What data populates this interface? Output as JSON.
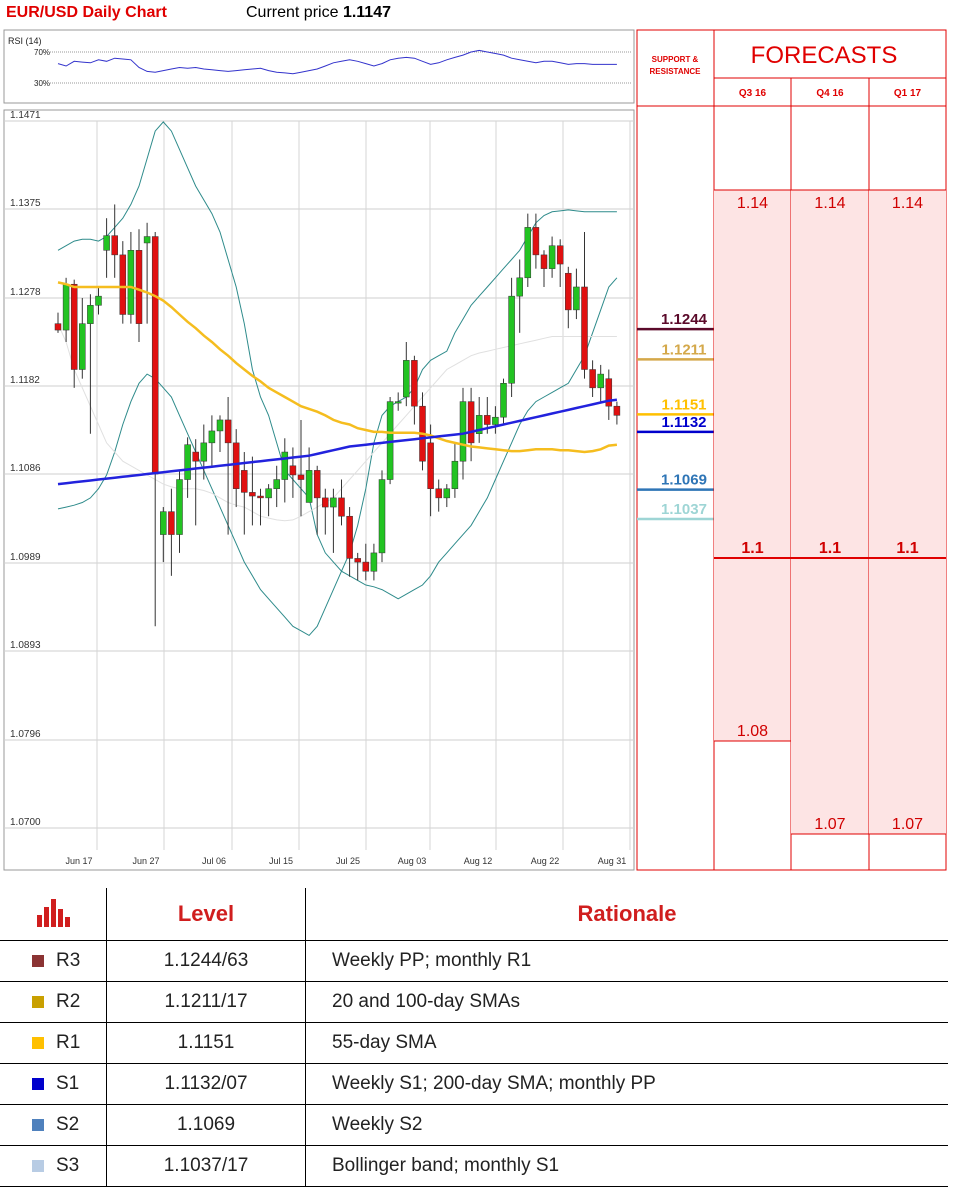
{
  "header": {
    "title": "EUR/USD Daily Chart",
    "price_label": "Current price",
    "price_value": "1.1147"
  },
  "rsi": {
    "label": "RSI (14)",
    "upper": "70%",
    "lower": "30%"
  },
  "forecasts": {
    "support_label": "SUPPORT & RESISTANCE",
    "title": "FORECASTS",
    "columns": [
      "Q3 16",
      "Q4 16",
      "Q1 17"
    ],
    "high_values": [
      "1.14",
      "1.14",
      "1.14"
    ],
    "mid_values": [
      "1.1",
      "1.1",
      "1.1"
    ],
    "low_values": [
      "1.08",
      "1.07",
      "1.07"
    ]
  },
  "chart_data": {
    "type": "candlestick",
    "title": "EUR/USD Daily Chart",
    "ylim": [
      1.07,
      1.1471
    ],
    "y_ticks": [
      "1.1471",
      "1.1375",
      "1.1278",
      "1.1182",
      "1.1086",
      "1.0989",
      "1.0893",
      "1.0796",
      "1.0700"
    ],
    "x_ticks": [
      "Jun 17",
      "Jun 27",
      "Jul 06",
      "Jul 15",
      "Jul 25",
      "Aug 03",
      "Aug 12",
      "Aug 22",
      "Aug 31"
    ],
    "candles": [
      [
        1.125,
        1.1262,
        1.1243,
        1.124
      ],
      [
        1.1243,
        1.13,
        1.1293,
        1.123
      ],
      [
        1.1293,
        1.1298,
        1.12,
        1.118
      ],
      [
        1.12,
        1.1278,
        1.125,
        1.119
      ],
      [
        1.125,
        1.1282,
        1.127,
        1.113
      ],
      [
        1.127,
        1.129,
        1.128,
        1.126
      ],
      [
        1.133,
        1.1365,
        1.1346,
        1.13
      ],
      [
        1.1346,
        1.138,
        1.1325,
        1.13
      ],
      [
        1.1325,
        1.134,
        1.126,
        1.125
      ],
      [
        1.126,
        1.135,
        1.133,
        1.125
      ],
      [
        1.133,
        1.1353,
        1.125,
        1.123
      ],
      [
        1.1338,
        1.136,
        1.1345,
        1.125
      ],
      [
        1.1345,
        1.135,
        1.1086,
        1.092
      ],
      [
        1.102,
        1.105,
        1.1045,
        1.099
      ],
      [
        1.1045,
        1.107,
        1.102,
        1.0975
      ],
      [
        1.102,
        1.109,
        1.108,
        1.1
      ],
      [
        1.108,
        1.1126,
        1.1118,
        1.106
      ],
      [
        1.111,
        1.1124,
        1.11,
        1.103
      ],
      [
        1.11,
        1.114,
        1.112,
        1.108
      ],
      [
        1.112,
        1.115,
        1.1133,
        1.1095
      ],
      [
        1.1133,
        1.115,
        1.1145,
        1.111
      ],
      [
        1.1145,
        1.117,
        1.112,
        1.102
      ],
      [
        1.112,
        1.1135,
        1.107,
        1.105
      ],
      [
        1.109,
        1.111,
        1.1066,
        1.102
      ],
      [
        1.1066,
        1.1105,
        1.1062,
        1.103
      ],
      [
        1.1062,
        1.107,
        1.106,
        1.103
      ],
      [
        1.106,
        1.1075,
        1.107,
        1.104
      ],
      [
        1.107,
        1.1095,
        1.108,
        1.105
      ],
      [
        1.108,
        1.1125,
        1.111,
        1.1055
      ],
      [
        1.1095,
        1.1115,
        1.1085,
        1.106
      ],
      [
        1.1085,
        1.1145,
        1.108,
        1.104
      ],
      [
        1.1055,
        1.1115,
        1.109,
        1.106
      ],
      [
        1.109,
        1.1095,
        1.106,
        1.102
      ],
      [
        1.106,
        1.107,
        1.105,
        1.102
      ],
      [
        1.105,
        1.107,
        1.106,
        1.1
      ],
      [
        1.106,
        1.108,
        1.104,
        1.103
      ],
      [
        1.104,
        1.105,
        1.0994,
        1.0974
      ],
      [
        1.0994,
        1.1,
        1.099,
        1.097
      ],
      [
        1.099,
        1.101,
        1.098,
        1.097
      ],
      [
        1.098,
        1.101,
        1.1,
        1.097
      ],
      [
        1.1,
        1.109,
        1.108,
        1.099
      ],
      [
        1.108,
        1.117,
        1.1165,
        1.1075
      ],
      [
        1.1165,
        1.1175,
        1.1165,
        1.1155
      ],
      [
        1.117,
        1.123,
        1.121,
        1.116
      ],
      [
        1.121,
        1.1215,
        1.116,
        1.114
      ],
      [
        1.116,
        1.1175,
        1.11,
        1.109
      ],
      [
        1.112,
        1.114,
        1.107,
        1.104
      ],
      [
        1.107,
        1.108,
        1.106,
        1.1045
      ],
      [
        1.106,
        1.1075,
        1.107,
        1.105
      ],
      [
        1.107,
        1.112,
        1.11,
        1.106
      ],
      [
        1.11,
        1.118,
        1.1165,
        1.108
      ],
      [
        1.1165,
        1.118,
        1.112,
        1.11
      ],
      [
        1.113,
        1.117,
        1.115,
        1.112
      ],
      [
        1.115,
        1.117,
        1.114,
        1.113
      ],
      [
        1.114,
        1.116,
        1.1148,
        1.113
      ],
      [
        1.1148,
        1.119,
        1.1185,
        1.114
      ],
      [
        1.1185,
        1.13,
        1.128,
        1.117
      ],
      [
        1.128,
        1.132,
        1.13,
        1.124
      ],
      [
        1.13,
        1.137,
        1.1355,
        1.129
      ],
      [
        1.1355,
        1.137,
        1.1325,
        1.131
      ],
      [
        1.1325,
        1.133,
        1.131,
        1.129
      ],
      [
        1.131,
        1.1345,
        1.1335,
        1.13
      ],
      [
        1.1335,
        1.1342,
        1.1315,
        1.129
      ],
      [
        1.1305,
        1.1312,
        1.1265,
        1.1245
      ],
      [
        1.1265,
        1.131,
        1.129,
        1.1255
      ],
      [
        1.129,
        1.135,
        1.12,
        1.119
      ],
      [
        1.12,
        1.121,
        1.118,
        1.117
      ],
      [
        1.118,
        1.1205,
        1.1195,
        1.1165
      ],
      [
        1.119,
        1.12,
        1.116,
        1.1145
      ],
      [
        1.116,
        1.1165,
        1.115,
        1.114
      ]
    ],
    "sma_55": [
      1.1295,
      1.1293,
      1.129,
      1.129,
      1.129,
      1.129,
      1.129,
      1.129,
      1.129,
      1.129,
      1.1287,
      1.1284,
      1.128,
      1.1275,
      1.1268,
      1.126,
      1.1252,
      1.1245,
      1.1237,
      1.123,
      1.1222,
      1.1215,
      1.1207,
      1.12,
      1.1193,
      1.1187,
      1.118,
      1.1175,
      1.117,
      1.1165,
      1.116,
      1.1157,
      1.1154,
      1.115,
      1.1145,
      1.1142,
      1.114,
      1.1136,
      1.1134,
      1.1132,
      1.1132,
      1.1131,
      1.1131,
      1.1131,
      1.1131,
      1.113,
      1.1128,
      1.1125,
      1.1122,
      1.112,
      1.1118,
      1.1116,
      1.1115,
      1.1114,
      1.1113,
      1.1112,
      1.1111,
      1.1111,
      1.1112,
      1.1113,
      1.1113,
      1.1113,
      1.1112,
      1.1112,
      1.1111,
      1.111,
      1.1111,
      1.1113,
      1.1117,
      1.1118
    ],
    "sma_200": [
      1.1075,
      1.1076,
      1.1077,
      1.1078,
      1.1079,
      1.108,
      1.1081,
      1.1082,
      1.1083,
      1.1084,
      1.1085,
      1.1086,
      1.1087,
      1.1088,
      1.1089,
      1.109,
      1.1091,
      1.1092,
      1.1093,
      1.1094,
      1.1095,
      1.1096,
      1.1097,
      1.1098,
      1.1099,
      1.11,
      1.1101,
      1.1102,
      1.1103,
      1.1104,
      1.1105,
      1.1106,
      1.1108,
      1.111,
      1.1112,
      1.1114,
      1.1116,
      1.1117,
      1.1118,
      1.1119,
      1.112,
      1.1121,
      1.1122,
      1.1123,
      1.1124,
      1.1125,
      1.1126,
      1.1127,
      1.1128,
      1.1129,
      1.113,
      1.1132,
      1.1134,
      1.1136,
      1.1138,
      1.114,
      1.1142,
      1.1144,
      1.1146,
      1.1148,
      1.115,
      1.1152,
      1.1154,
      1.1156,
      1.1158,
      1.116,
      1.1162,
      1.1164,
      1.1166,
      1.1167
    ],
    "bb_upper": [
      1.133,
      1.1335,
      1.134,
      1.1342,
      1.1342,
      1.134,
      1.1345,
      1.1355,
      1.1365,
      1.138,
      1.14,
      1.143,
      1.146,
      1.147,
      1.146,
      1.144,
      1.142,
      1.14,
      1.1385,
      1.137,
      1.135,
      1.132,
      1.129,
      1.125,
      1.12,
      1.117,
      1.115,
      1.112,
      1.109,
      1.108,
      1.107,
      1.106,
      1.102,
      1.1,
      1.099,
      1.098,
      1.0975,
      1.097,
      1.0965,
      1.0963,
      1.096,
      1.0955,
      1.095,
      1.0955,
      1.096,
      1.0965,
      1.0975,
      1.099,
      1.1,
      1.101,
      1.102,
      1.103,
      1.1045,
      1.106,
      1.108,
      1.11,
      1.112,
      1.114,
      1.1155,
      1.1165,
      1.117,
      1.1175,
      1.118,
      1.1185,
      1.12,
      1.1215,
      1.124,
      1.1265,
      1.129,
      1.13
    ],
    "bb_lower": [
      1.1048,
      1.105,
      1.1052,
      1.1055,
      1.106,
      1.107,
      1.1085,
      1.111,
      1.114,
      1.1165,
      1.1185,
      1.1195,
      1.119,
      1.118,
      1.117,
      1.115,
      1.113,
      1.111,
      1.109,
      1.107,
      1.105,
      1.103,
      1.101,
      1.099,
      1.0975,
      1.096,
      1.095,
      1.094,
      1.093,
      1.092,
      1.0915,
      1.091,
      1.092,
      1.094,
      1.096,
      1.098,
      1.1,
      1.103,
      1.107,
      1.112,
      1.115,
      1.116,
      1.1165,
      1.117,
      1.118,
      1.12,
      1.121,
      1.1215,
      1.122,
      1.124,
      1.1255,
      1.127,
      1.128,
      1.129,
      1.13,
      1.131,
      1.132,
      1.133,
      1.1345,
      1.136,
      1.1368,
      1.1372,
      1.1373,
      1.1374,
      1.1373,
      1.1372,
      1.1372,
      1.1372,
      1.1372,
      1.1372
    ],
    "sma_20": [
      1.125,
      1.123,
      1.12,
      1.118,
      1.116,
      1.114,
      1.112,
      1.111,
      1.11,
      1.1095,
      1.109,
      1.1085,
      1.108,
      1.1075,
      1.1072,
      1.107,
      1.107,
      1.107,
      1.1068,
      1.1065,
      1.106,
      1.1055,
      1.1052,
      1.105,
      1.1045,
      1.104,
      1.1038,
      1.1036,
      1.1035,
      1.1036,
      1.104,
      1.1045,
      1.105,
      1.1055,
      1.106,
      1.107,
      1.108,
      1.109,
      1.11,
      1.111,
      1.112,
      1.113,
      1.114,
      1.115,
      1.116,
      1.117,
      1.118,
      1.119,
      1.12,
      1.1205,
      1.121,
      1.1215,
      1.1218,
      1.122,
      1.1222,
      1.1224,
      1.1226,
      1.1228,
      1.123,
      1.1232,
      1.1234,
      1.1236,
      1.1236,
      1.1236,
      1.1236,
      1.1236,
      1.1236,
      1.1236,
      1.1236,
      1.1236
    ],
    "rsi_values": [
      55,
      52,
      58,
      57,
      56,
      60,
      58,
      62,
      61,
      60,
      50,
      45,
      44,
      46,
      48,
      50,
      49,
      50,
      48,
      47,
      46,
      45,
      46,
      47,
      48,
      49,
      46,
      44,
      43,
      42,
      44,
      46,
      48,
      52,
      56,
      58,
      60,
      58,
      55,
      52,
      55,
      60,
      62,
      63,
      62,
      58,
      54,
      56,
      60,
      63,
      66,
      70,
      72,
      70,
      68,
      66,
      62,
      60,
      58,
      56,
      58,
      58,
      56,
      54,
      55,
      55,
      54,
      54,
      54,
      54
    ],
    "sr_levels": [
      {
        "label": "1.1244",
        "value": 1.1244,
        "color": "#5b0a2a"
      },
      {
        "label": "1.1211",
        "value": 1.1211,
        "color": "#d4a84a"
      },
      {
        "label": "1.1151",
        "value": 1.1151,
        "color": "#ffc000"
      },
      {
        "label": "1.1132",
        "value": 1.1132,
        "color": "#0000cc"
      },
      {
        "label": "1.1069",
        "value": 1.1069,
        "color": "#2e75b6"
      },
      {
        "label": "1.1037",
        "value": 1.1037,
        "color": "#9ed5d5"
      }
    ]
  },
  "levels_table": {
    "col_level": "Level",
    "col_rationale": "Rationale",
    "rows": [
      {
        "name": "R3",
        "color": "#8b3333",
        "level": "1.1244/63",
        "rationale": "Weekly  PP; monthly R1"
      },
      {
        "name": "R2",
        "color": "#c9a000",
        "level": "1.1211/17",
        "rationale": "20 and 100-day SMAs"
      },
      {
        "name": "R1",
        "color": "#ffc000",
        "level": "1.1151",
        "rationale": "55-day SMA"
      },
      {
        "name": "S1",
        "color": "#0000cc",
        "level": "1.1132/07",
        "rationale": "Weekly S1; 200-day SMA; monthly PP"
      },
      {
        "name": "S2",
        "color": "#4f81bd",
        "level": "1.1069",
        "rationale": "Weekly S2"
      },
      {
        "name": "S3",
        "color": "#b8cce4",
        "level": "1.1037/17",
        "rationale": "Bollinger band; monthly S1"
      }
    ]
  }
}
